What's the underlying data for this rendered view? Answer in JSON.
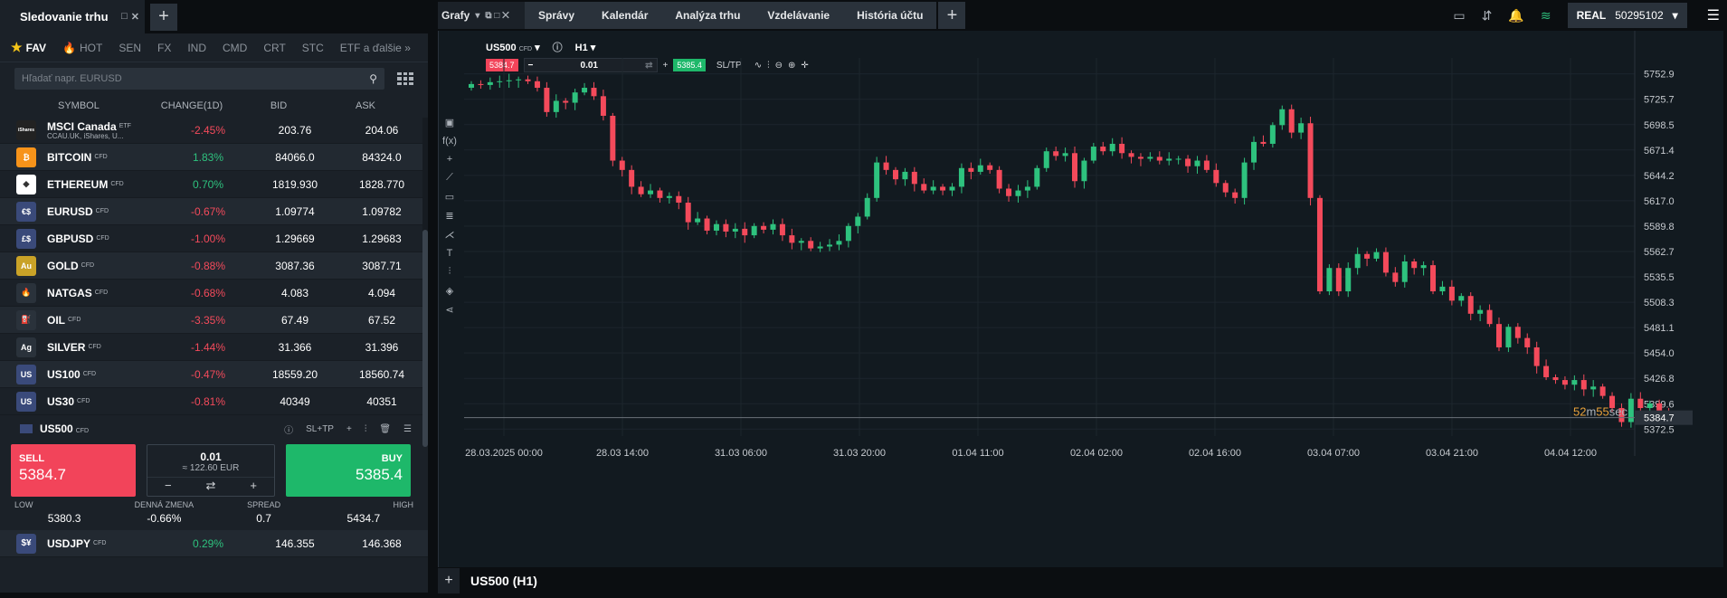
{
  "left_panel": {
    "tab_title": "Sledovanie trhu",
    "categories": [
      "FAV",
      "HOT",
      "SEN",
      "FX",
      "IND",
      "CMD",
      "CRT",
      "STC",
      "ETF a ďalšie"
    ],
    "search_placeholder": "Hľadať napr. EURUSD",
    "columns": [
      "SYMBOL",
      "CHANGE(1D)",
      "BID",
      "ASK"
    ],
    "rows": [
      {
        "symbol": "MSCI Canada",
        "tag": "ETF",
        "sub": "CCAU.UK, iShares, U...",
        "change": "-2.45%",
        "bid": "203.76",
        "ask": "204.06",
        "icon_color": "#222",
        "icon_text": "iShares",
        "up": false
      },
      {
        "symbol": "BITCOIN",
        "tag": "CFD",
        "change": "1.83%",
        "bid": "84066.0",
        "ask": "84324.0",
        "icon_color": "#f7931a",
        "icon_text": "₿",
        "up": true
      },
      {
        "symbol": "ETHEREUM",
        "tag": "CFD",
        "change": "0.70%",
        "bid": "1819.930",
        "ask": "1828.770",
        "icon_color": "#ffffff",
        "icon_text": "◆",
        "up": true
      },
      {
        "symbol": "EURUSD",
        "tag": "CFD",
        "change": "-0.67%",
        "bid": "1.09774",
        "ask": "1.09782",
        "icon_color": "#3a4a7a",
        "icon_text": "€$",
        "up": false
      },
      {
        "symbol": "GBPUSD",
        "tag": "CFD",
        "change": "-1.00%",
        "bid": "1.29669",
        "ask": "1.29683",
        "icon_color": "#3a4a7a",
        "icon_text": "£$",
        "up": false
      },
      {
        "symbol": "GOLD",
        "tag": "CFD",
        "change": "-0.88%",
        "bid": "3087.36",
        "ask": "3087.71",
        "icon_color": "#c9a227",
        "icon_text": "Au",
        "up": false
      },
      {
        "symbol": "NATGAS",
        "tag": "CFD",
        "change": "-0.68%",
        "bid": "4.083",
        "ask": "4.094",
        "icon_color": "#2a323b",
        "icon_text": "🔥",
        "up": false
      },
      {
        "symbol": "OIL",
        "tag": "CFD",
        "change": "-3.35%",
        "bid": "67.49",
        "ask": "67.52",
        "icon_color": "#2a323b",
        "icon_text": "⛽",
        "up": false
      },
      {
        "symbol": "SILVER",
        "tag": "CFD",
        "change": "-1.44%",
        "bid": "31.366",
        "ask": "31.396",
        "icon_color": "#2a323b",
        "icon_text": "Ag",
        "up": false
      },
      {
        "symbol": "US100",
        "tag": "CFD",
        "change": "-0.47%",
        "bid": "18559.20",
        "ask": "18560.74",
        "icon_color": "#3a4a7a",
        "icon_text": "US",
        "up": false
      },
      {
        "symbol": "US30",
        "tag": "CFD",
        "change": "-0.81%",
        "bid": "40349",
        "ask": "40351",
        "icon_color": "#3a4a7a",
        "icon_text": "US",
        "up": false
      }
    ],
    "expanded": {
      "symbol": "US500",
      "tag": "CFD",
      "sltp": "SL+TP",
      "sell_label": "SELL",
      "sell_price": "5384.7",
      "buy_label": "BUY",
      "buy_price": "5385.4",
      "volume": "0.01",
      "volume_eur": "≈ 122.60 EUR",
      "stats": [
        {
          "label": "LOW",
          "value": "5380.3"
        },
        {
          "label": "DENNÁ ZMENA",
          "value": "-0.66%"
        },
        {
          "label": "SPREAD",
          "value": "0.7"
        },
        {
          "label": "HIGH",
          "value": "5434.7"
        }
      ]
    },
    "last_row": {
      "symbol": "USDJPY",
      "tag": "CFD",
      "change": "0.29%",
      "bid": "146.355",
      "ask": "146.368"
    }
  },
  "right_panel": {
    "tabs": [
      "Grafy",
      "Správy",
      "Kalendár",
      "Analýza trhu",
      "Vzdelávanie",
      "História účtu"
    ],
    "account_type": "REAL",
    "account_number": "50295102",
    "chart_symbol": "US500",
    "chart_tag": "CFD",
    "timeframe": "H1",
    "sell_pill": "5384.7",
    "buy_pill": "5385.4",
    "volume": "0.01",
    "sltp": "SL/TP",
    "countdown_min": "52",
    "countdown_m": "m",
    "countdown_sec": "55",
    "countdown_s": "sec",
    "current_price_label": "5384.7",
    "bottom_label": "US500 (H1)",
    "colors": {
      "up": "#2ec27e",
      "down": "#f44a5b"
    }
  },
  "chart_data": {
    "type": "candlestick",
    "y_ticks": [
      "5752.9",
      "5725.7",
      "5698.5",
      "5671.4",
      "5644.2",
      "5617.0",
      "5589.8",
      "5562.7",
      "5535.5",
      "5508.3",
      "5481.1",
      "5454.0",
      "5426.8",
      "5399.6",
      "5372.5"
    ],
    "ylim": [
      5365,
      5770
    ],
    "x_ticks": [
      "28.03.2025 00:00",
      "28.03 14:00",
      "31.03 06:00",
      "31.03 20:00",
      "01.04 11:00",
      "02.04 02:00",
      "02.04 16:00",
      "03.04 07:00",
      "03.04 21:00",
      "04.04 12:00"
    ],
    "current_price": 5384.7,
    "closes": [
      5742,
      5741,
      5744,
      5745,
      5746,
      5747,
      5745,
      5738,
      5712,
      5724,
      5722,
      5733,
      5738,
      5729,
      5708,
      5660,
      5650,
      5632,
      5624,
      5628,
      5620,
      5622,
      5615,
      5594,
      5598,
      5585,
      5592,
      5584,
      5587,
      5580,
      5590,
      5586,
      5592,
      5580,
      5572,
      5574,
      5566,
      5568,
      5570,
      5574,
      5590,
      5600,
      5620,
      5658,
      5650,
      5640,
      5648,
      5635,
      5628,
      5632,
      5628,
      5632,
      5652,
      5648,
      5655,
      5650,
      5630,
      5622,
      5628,
      5632,
      5652,
      5670,
      5665,
      5668,
      5638,
      5660,
      5675,
      5670,
      5678,
      5668,
      5664,
      5662,
      5664,
      5660,
      5662,
      5662,
      5654,
      5660,
      5650,
      5636,
      5626,
      5620,
      5658,
      5680,
      5678,
      5698,
      5715,
      5690,
      5700,
      5620,
      5520,
      5545,
      5520,
      5545,
      5560,
      5555,
      5562,
      5540,
      5530,
      5552,
      5545,
      5548,
      5520,
      5525,
      5510,
      5515,
      5496,
      5500,
      5485,
      5460,
      5482,
      5470,
      5460,
      5440,
      5428,
      5425,
      5420,
      5425,
      5415,
      5418,
      5408,
      5395,
      5380,
      5405,
      5395,
      5400,
      5390,
      5384
    ]
  }
}
